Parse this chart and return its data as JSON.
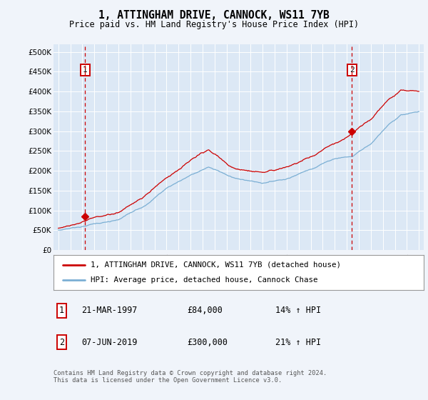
{
  "title": "1, ATTINGHAM DRIVE, CANNOCK, WS11 7YB",
  "subtitle": "Price paid vs. HM Land Registry's House Price Index (HPI)",
  "legend_label_red": "1, ATTINGHAM DRIVE, CANNOCK, WS11 7YB (detached house)",
  "legend_label_blue": "HPI: Average price, detached house, Cannock Chase",
  "annotation1_date": "21-MAR-1997",
  "annotation1_price": "£84,000",
  "annotation1_hpi": "14% ↑ HPI",
  "annotation2_date": "07-JUN-2019",
  "annotation2_price": "£300,000",
  "annotation2_hpi": "21% ↑ HPI",
  "footer": "Contains HM Land Registry data © Crown copyright and database right 2024.\nThis data is licensed under the Open Government Licence v3.0.",
  "red_color": "#cc0000",
  "blue_color": "#7bafd4",
  "dash_color": "#cc0000",
  "fig_bg": "#f0f4fa",
  "plot_bg": "#dce8f5",
  "ylim_min": 0,
  "ylim_max": 520000,
  "purchase1_year": 1997.22,
  "purchase1_price": 84000,
  "purchase2_year": 2019.43,
  "purchase2_price": 300000,
  "xstart": 1995,
  "xend": 2025
}
